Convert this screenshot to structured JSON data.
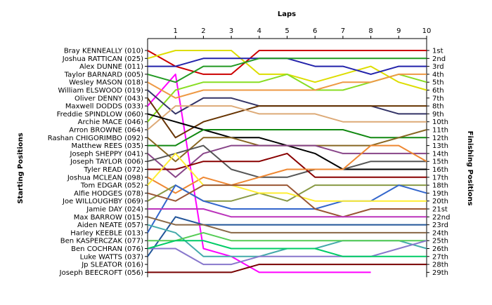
{
  "chart_data": {
    "type": "line",
    "title": "Laps",
    "ylabel": "Starting Positions",
    "y2label": "Finishing Positions",
    "x": [
      1,
      2,
      3,
      4,
      5,
      6,
      7,
      8,
      9,
      10
    ],
    "x_tick_labels": [
      "1",
      "2",
      "3",
      "4",
      "5",
      "6",
      "7",
      "8",
      "9",
      "10"
    ],
    "y_range": [
      1,
      29
    ],
    "y_inverted": true,
    "grid": false,
    "start_labels": [
      "Bray KENNEALLY (010)",
      "Joshua RATTICAN (025)",
      "Alex DUNNE (011)",
      "Taylor BARNARD (005)",
      "Wesley MASON (018)",
      "William ELSWOOD (019)",
      "Oliver DENNY (043)",
      "Maxwell  DODDS (033)",
      "Freddie SPINDLOW (060)",
      "Archie MACE (046)",
      "Arron BROWNE (064)",
      "Rashan CHIGORIMBO (092)",
      "Matthew REES (035)",
      "Joseph SHEPPY (041)",
      "Joseph TAYLOR (006)",
      "Tyler READ (072)",
      "Joshua MCLEAN (098)",
      "Tom EDGAR (052)",
      "Alfie HODGES (078)",
      "Joe WILLOUGHBY (069)",
      "Jamie DAY (024)",
      "Max BARROW (015)",
      "Aiden NEATE (057)",
      "Harley KEEBLE (013)",
      "Ben KASPERCZAK (077)",
      "Ben COCHRAN (076)",
      "Luke WATTS (037)",
      "Jp SLEATOR (016)",
      "Joseph BEECROFT (056)"
    ],
    "finish_labels": [
      "1st",
      "2nd",
      "3rd",
      "4th",
      "5th",
      "6th",
      "7th",
      "8th",
      "9th",
      "10th",
      "11th",
      "12th",
      "13th",
      "14th",
      "15th",
      "16th",
      "17th",
      "18th",
      "19th",
      "20th",
      "21st",
      "22nd",
      "23rd",
      "24th",
      "25th",
      "26th",
      "27th",
      "28th",
      "29th"
    ],
    "series": [
      {
        "color": "#cc0000",
        "start": 1,
        "positions": [
          3,
          4,
          4,
          1,
          1,
          1,
          1,
          1,
          1,
          1
        ]
      },
      {
        "color": "#dddd00",
        "start": 2,
        "positions": [
          1,
          1,
          1,
          4,
          4,
          5,
          4,
          3,
          5,
          6
        ]
      },
      {
        "color": "#2222aa",
        "start": 3,
        "positions": [
          3,
          2,
          2,
          2,
          2,
          3,
          3,
          4,
          3,
          3
        ]
      },
      {
        "color": "#ff00ff",
        "start": 8,
        "positions": [
          4,
          26,
          27,
          29,
          29,
          29,
          29,
          29
        ]
      },
      {
        "color": "#229922",
        "start": 4,
        "positions": [
          5,
          3,
          3,
          2,
          2,
          2,
          2,
          2,
          2,
          2
        ]
      },
      {
        "color": "#88dd22",
        "start": 10,
        "positions": [
          6,
          5,
          5,
          5,
          4,
          6,
          6,
          5,
          4,
          5
        ]
      },
      {
        "color": "#ee9944",
        "start": 5,
        "positions": [
          7,
          6,
          6,
          6,
          6,
          6,
          5,
          5,
          4,
          4
        ]
      },
      {
        "color": "#333366",
        "start": 6,
        "positions": [
          9,
          7,
          7,
          8,
          8,
          8,
          8,
          8,
          9,
          9
        ]
      },
      {
        "color": "#663300",
        "start": 7,
        "positions": [
          12,
          10,
          9,
          8,
          8,
          8,
          8,
          8,
          8,
          8
        ]
      },
      {
        "color": "#ddaa77",
        "start": 11,
        "positions": [
          8,
          8,
          8,
          9,
          9,
          9,
          10,
          10,
          10,
          10
        ]
      },
      {
        "color": "#000000",
        "start": 9,
        "positions": [
          10,
          11,
          12,
          12,
          13,
          14,
          16,
          16,
          16,
          16
        ]
      },
      {
        "color": "#118811",
        "start": 13,
        "positions": [
          13,
          11,
          11,
          11,
          11,
          11,
          11,
          12,
          12,
          12
        ]
      },
      {
        "color": "#886622",
        "start": 12,
        "positions": [
          15,
          12,
          12,
          13,
          13,
          13,
          13,
          13,
          12,
          11
        ]
      },
      {
        "color": "#884488",
        "start": 14,
        "positions": [
          17,
          14,
          13,
          13,
          13,
          13,
          14,
          14,
          14,
          14
        ]
      },
      {
        "color": "#555555",
        "start": 15,
        "positions": [
          14,
          13,
          16,
          17,
          17,
          16,
          16,
          15,
          15,
          15
        ]
      },
      {
        "color": "#880000",
        "start": 16,
        "positions": [
          16,
          15,
          15,
          15,
          14,
          17,
          17,
          17,
          17,
          17
        ]
      },
      {
        "color": "#ee8833",
        "start": 17,
        "positions": [
          19,
          17,
          18,
          17,
          16,
          16,
          16,
          13,
          13,
          15
        ]
      },
      {
        "color": "#889944",
        "start": 20,
        "positions": [
          18,
          20,
          20,
          19,
          20,
          18,
          18,
          18,
          18,
          18
        ]
      },
      {
        "color": "#3366cc",
        "start": 24,
        "positions": [
          18,
          20,
          21,
          21,
          21,
          21,
          20,
          20,
          18,
          19
        ]
      },
      {
        "color": "#ffee33",
        "start": 18,
        "positions": [
          14,
          18,
          18,
          19,
          19,
          20,
          20,
          20,
          20,
          20
        ]
      },
      {
        "color": "#995533",
        "start": 19,
        "positions": [
          20,
          18,
          18,
          18,
          18,
          21,
          22,
          21,
          21,
          21
        ]
      },
      {
        "color": "#bb33bb",
        "start": 21,
        "positions": [
          21,
          21,
          22,
          22,
          22,
          22,
          22,
          22,
          22,
          22
        ]
      },
      {
        "color": "#225599",
        "start": 27,
        "positions": [
          22,
          23,
          23,
          23,
          23,
          23,
          23,
          23,
          23,
          23
        ]
      },
      {
        "color": "#886644",
        "start": 22,
        "positions": [
          23,
          23,
          24,
          24,
          24,
          24,
          24,
          24,
          24,
          24
        ]
      },
      {
        "color": "#44aaaa",
        "start": 23,
        "positions": [
          24,
          27,
          27,
          27,
          26,
          26,
          25,
          25,
          25,
          26
        ]
      },
      {
        "color": "#55cc55",
        "start": 25,
        "positions": [
          25,
          24,
          25,
          25,
          25,
          25,
          25,
          25,
          25,
          25
        ]
      },
      {
        "color": "#8877cc",
        "start": 26,
        "positions": [
          26,
          28,
          28,
          27,
          27,
          27,
          27,
          27,
          26,
          25
        ]
      },
      {
        "color": "#00cc66",
        "start": 26,
        "positions": [
          25,
          25,
          26,
          26,
          26,
          26,
          27,
          27,
          27,
          27
        ]
      },
      {
        "color": "#770000",
        "start": 29,
        "positions": [
          29,
          29,
          29,
          28,
          28,
          28,
          28,
          28,
          28,
          28
        ]
      }
    ]
  }
}
